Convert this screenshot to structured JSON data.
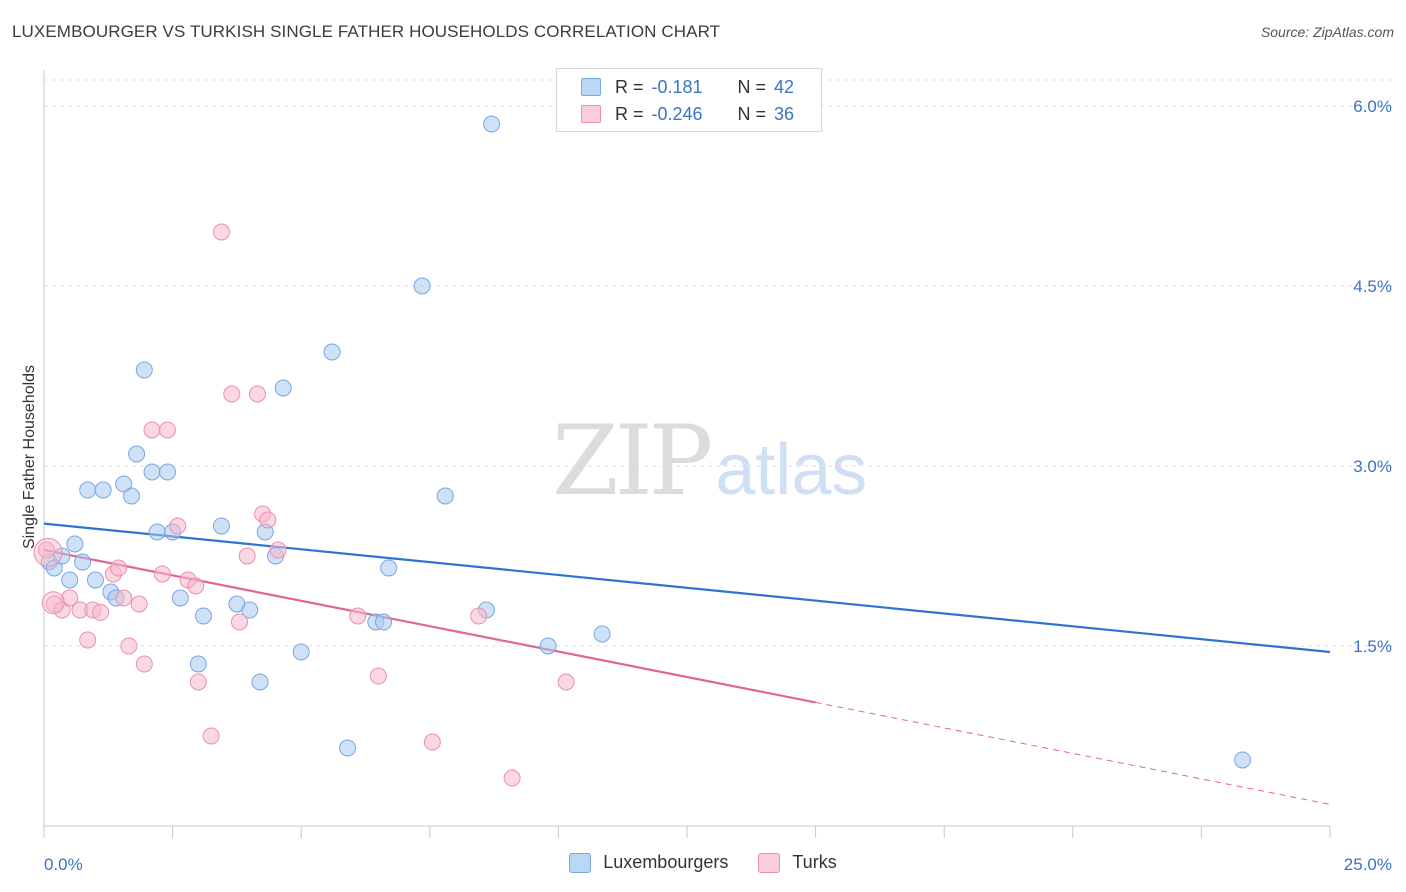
{
  "title": "LUXEMBOURGER VS TURKISH SINGLE FATHER HOUSEHOLDS CORRELATION CHART",
  "source": "Source: ZipAtlas.com",
  "watermark": {
    "zip": "ZIP",
    "atlas": "atlas"
  },
  "legend": {
    "rows": [
      {
        "r_label": "R =",
        "r_value": "-0.181",
        "n_label": "N =",
        "n_value": "42",
        "color": "#a8c8f0"
      },
      {
        "r_label": "R =",
        "r_value": "-0.246",
        "n_label": "N =",
        "n_value": "36",
        "color": "#f5b8cc"
      }
    ]
  },
  "bottom_legend": [
    {
      "label": "Luxembourgers",
      "color": "#a8c8f0"
    },
    {
      "label": "Turks",
      "color": "#f5b8cc"
    }
  ],
  "chart_data": {
    "type": "scatter",
    "title": "LUXEMBOURGER VS TURKISH SINGLE FATHER HOUSEHOLDS CORRELATION CHART",
    "xlabel": "",
    "ylabel": "Single Father Households",
    "xlim": [
      0,
      25
    ],
    "ylim": [
      0,
      6.3
    ],
    "x_tick_labels": [
      "0.0%",
      "25.0%"
    ],
    "y_ticks": [
      1.5,
      3.0,
      4.5,
      6.0
    ],
    "y_tick_labels": [
      "1.5%",
      "3.0%",
      "4.5%",
      "6.0%"
    ],
    "grid": true,
    "legend_position": "top-center",
    "series": [
      {
        "name": "Luxembourgers",
        "color": "#a8c8f0",
        "stroke": "#7aa7e0",
        "line_color": "#2f74d0",
        "trend": {
          "x": [
            0,
            25
          ],
          "y": [
            2.52,
            1.45
          ]
        },
        "points": [
          [
            0.1,
            2.2
          ],
          [
            0.2,
            2.15
          ],
          [
            0.35,
            2.25
          ],
          [
            0.5,
            2.05
          ],
          [
            0.6,
            2.35
          ],
          [
            0.75,
            2.2
          ],
          [
            0.85,
            2.8
          ],
          [
            1.0,
            2.05
          ],
          [
            1.15,
            2.8
          ],
          [
            1.3,
            1.95
          ],
          [
            1.4,
            1.9
          ],
          [
            1.55,
            2.85
          ],
          [
            1.7,
            2.75
          ],
          [
            1.8,
            3.1
          ],
          [
            1.95,
            3.8
          ],
          [
            2.1,
            2.95
          ],
          [
            2.2,
            2.45
          ],
          [
            2.4,
            2.95
          ],
          [
            2.5,
            2.45
          ],
          [
            2.65,
            1.9
          ],
          [
            3.0,
            1.35
          ],
          [
            3.1,
            1.75
          ],
          [
            3.45,
            2.5
          ],
          [
            3.75,
            1.85
          ],
          [
            4.0,
            1.8
          ],
          [
            4.2,
            1.2
          ],
          [
            4.3,
            2.45
          ],
          [
            4.5,
            2.25
          ],
          [
            4.65,
            3.65
          ],
          [
            5.0,
            1.45
          ],
          [
            5.6,
            3.95
          ],
          [
            5.9,
            0.65
          ],
          [
            6.45,
            1.7
          ],
          [
            6.7,
            2.15
          ],
          [
            7.35,
            4.5
          ],
          [
            7.8,
            2.75
          ],
          [
            8.6,
            1.8
          ],
          [
            8.7,
            5.85
          ],
          [
            9.8,
            1.5
          ],
          [
            10.85,
            1.6
          ],
          [
            23.3,
            0.55
          ],
          [
            6.6,
            1.7
          ]
        ]
      },
      {
        "name": "Turks",
        "color": "#f5b8cc",
        "stroke": "#ec8fac",
        "line_color": "#e06694",
        "trend": {
          "x": [
            0,
            15
          ],
          "y": [
            2.3,
            1.03
          ]
        },
        "trend_dashed": {
          "x": [
            15,
            25
          ],
          "y": [
            1.03,
            0.18
          ]
        },
        "points": [
          [
            0.05,
            2.3
          ],
          [
            0.2,
            1.85
          ],
          [
            0.35,
            1.8
          ],
          [
            0.5,
            1.9
          ],
          [
            0.7,
            1.8
          ],
          [
            0.85,
            1.55
          ],
          [
            0.95,
            1.8
          ],
          [
            1.1,
            1.78
          ],
          [
            1.35,
            2.1
          ],
          [
            1.45,
            2.15
          ],
          [
            1.55,
            1.9
          ],
          [
            1.65,
            1.5
          ],
          [
            1.85,
            1.85
          ],
          [
            1.95,
            1.35
          ],
          [
            2.1,
            3.3
          ],
          [
            2.3,
            2.1
          ],
          [
            2.4,
            3.3
          ],
          [
            2.6,
            2.5
          ],
          [
            2.8,
            2.05
          ],
          [
            2.95,
            2.0
          ],
          [
            3.0,
            1.2
          ],
          [
            3.25,
            0.75
          ],
          [
            3.45,
            4.95
          ],
          [
            3.65,
            3.6
          ],
          [
            3.8,
            1.7
          ],
          [
            3.95,
            2.25
          ],
          [
            4.15,
            3.6
          ],
          [
            4.25,
            2.6
          ],
          [
            4.35,
            2.55
          ],
          [
            4.55,
            2.3
          ],
          [
            6.1,
            1.75
          ],
          [
            6.5,
            1.25
          ],
          [
            7.55,
            0.7
          ],
          [
            8.45,
            1.75
          ],
          [
            9.1,
            0.4
          ],
          [
            10.15,
            1.2
          ]
        ]
      }
    ]
  }
}
